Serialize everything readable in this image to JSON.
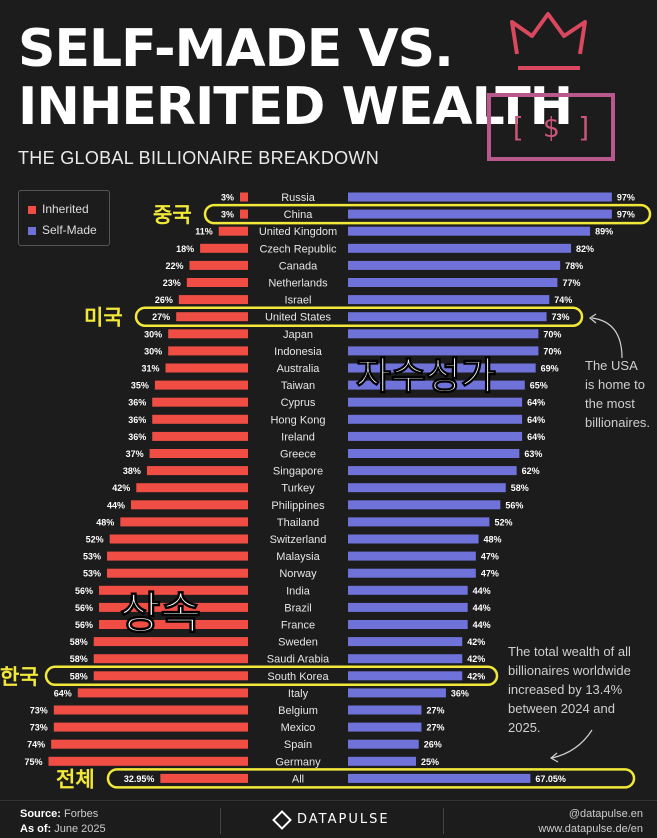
{
  "header": {
    "title_line1": "SELF-MADE VS.",
    "title_line2": "INHERITED WEALTH",
    "subtitle": "THE GLOBAL BILLIONAIRE BREAKDOWN"
  },
  "legend": {
    "inherited": "Inherited",
    "self_made": "Self-Made"
  },
  "colors": {
    "inherited": "#f04e45",
    "self_made": "#6f72d8",
    "highlight": "#f2e83a",
    "icon": "#d9485f",
    "icon2": "#b8588c"
  },
  "chart_data": {
    "type": "bar",
    "categories": [
      "Russia",
      "China",
      "United Kingdom",
      "Czech Republic",
      "Canada",
      "Netherlands",
      "Israel",
      "United States",
      "Japan",
      "Indonesia",
      "Australia",
      "Taiwan",
      "Cyprus",
      "Hong Kong",
      "Ireland",
      "Greece",
      "Singapore",
      "Turkey",
      "Philippines",
      "Thailand",
      "Switzerland",
      "Malaysia",
      "Norway",
      "India",
      "Brazil",
      "France",
      "Sweden",
      "Saudi Arabia",
      "South Korea",
      "Italy",
      "Belgium",
      "Mexico",
      "Spain",
      "Germany",
      "All"
    ],
    "series": [
      {
        "name": "Inherited",
        "values": [
          3,
          3,
          11,
          18,
          22,
          23,
          26,
          27,
          30,
          30,
          31,
          35,
          36,
          36,
          36,
          37,
          38,
          42,
          44,
          48,
          52,
          53,
          53,
          56,
          56,
          56,
          58,
          58,
          58,
          64,
          73,
          73,
          74,
          75,
          32.95
        ],
        "labels": [
          "3%",
          "3%",
          "11%",
          "18%",
          "22%",
          "23%",
          "26%",
          "27%",
          "30%",
          "30%",
          "31%",
          "35%",
          "36%",
          "36%",
          "36%",
          "37%",
          "38%",
          "42%",
          "44%",
          "48%",
          "52%",
          "53%",
          "53%",
          "56%",
          "56%",
          "56%",
          "58%",
          "58%",
          "58%",
          "64%",
          "73%",
          "73%",
          "74%",
          "75%",
          "32.95%"
        ]
      },
      {
        "name": "Self-Made",
        "values": [
          97,
          97,
          89,
          82,
          78,
          77,
          74,
          73,
          70,
          70,
          69,
          65,
          64,
          64,
          64,
          63,
          62,
          58,
          56,
          52,
          48,
          47,
          47,
          44,
          44,
          44,
          42,
          42,
          42,
          36,
          27,
          27,
          26,
          25,
          67.05
        ],
        "labels": [
          "97%",
          "97%",
          "89%",
          "82%",
          "78%",
          "77%",
          "74%",
          "73%",
          "70%",
          "70%",
          "69%",
          "65%",
          "64%",
          "64%",
          "64%",
          "63%",
          "62%",
          "58%",
          "56%",
          "52%",
          "48%",
          "47%",
          "47%",
          "44%",
          "44%",
          "44%",
          "42%",
          "42%",
          "42%",
          "36%",
          "27%",
          "27%",
          "26%",
          "25%",
          "67.05%"
        ]
      }
    ],
    "highlighted": [
      "China",
      "United States",
      "South Korea",
      "All"
    ]
  },
  "annotations": {
    "china": "중국",
    "usa": "미국",
    "korea": "한국",
    "total": "전체",
    "self_made_big": "자수성가",
    "inherited_big": "상속",
    "usa_note": [
      "The USA",
      "is home to",
      "the most",
      "billionaires."
    ],
    "total_note": [
      "The total wealth of all",
      "billionaires worldwide",
      "increased by 13.4%",
      "between 2024 and",
      "2025."
    ]
  },
  "footer": {
    "source_label": "Source:",
    "source_value": "Forbes",
    "asof_label": "As of:",
    "asof_value": "June 2025",
    "brand": "DATAPULSE",
    "handle": "@datapulse.en",
    "site": "www.datapulse.de/en"
  }
}
